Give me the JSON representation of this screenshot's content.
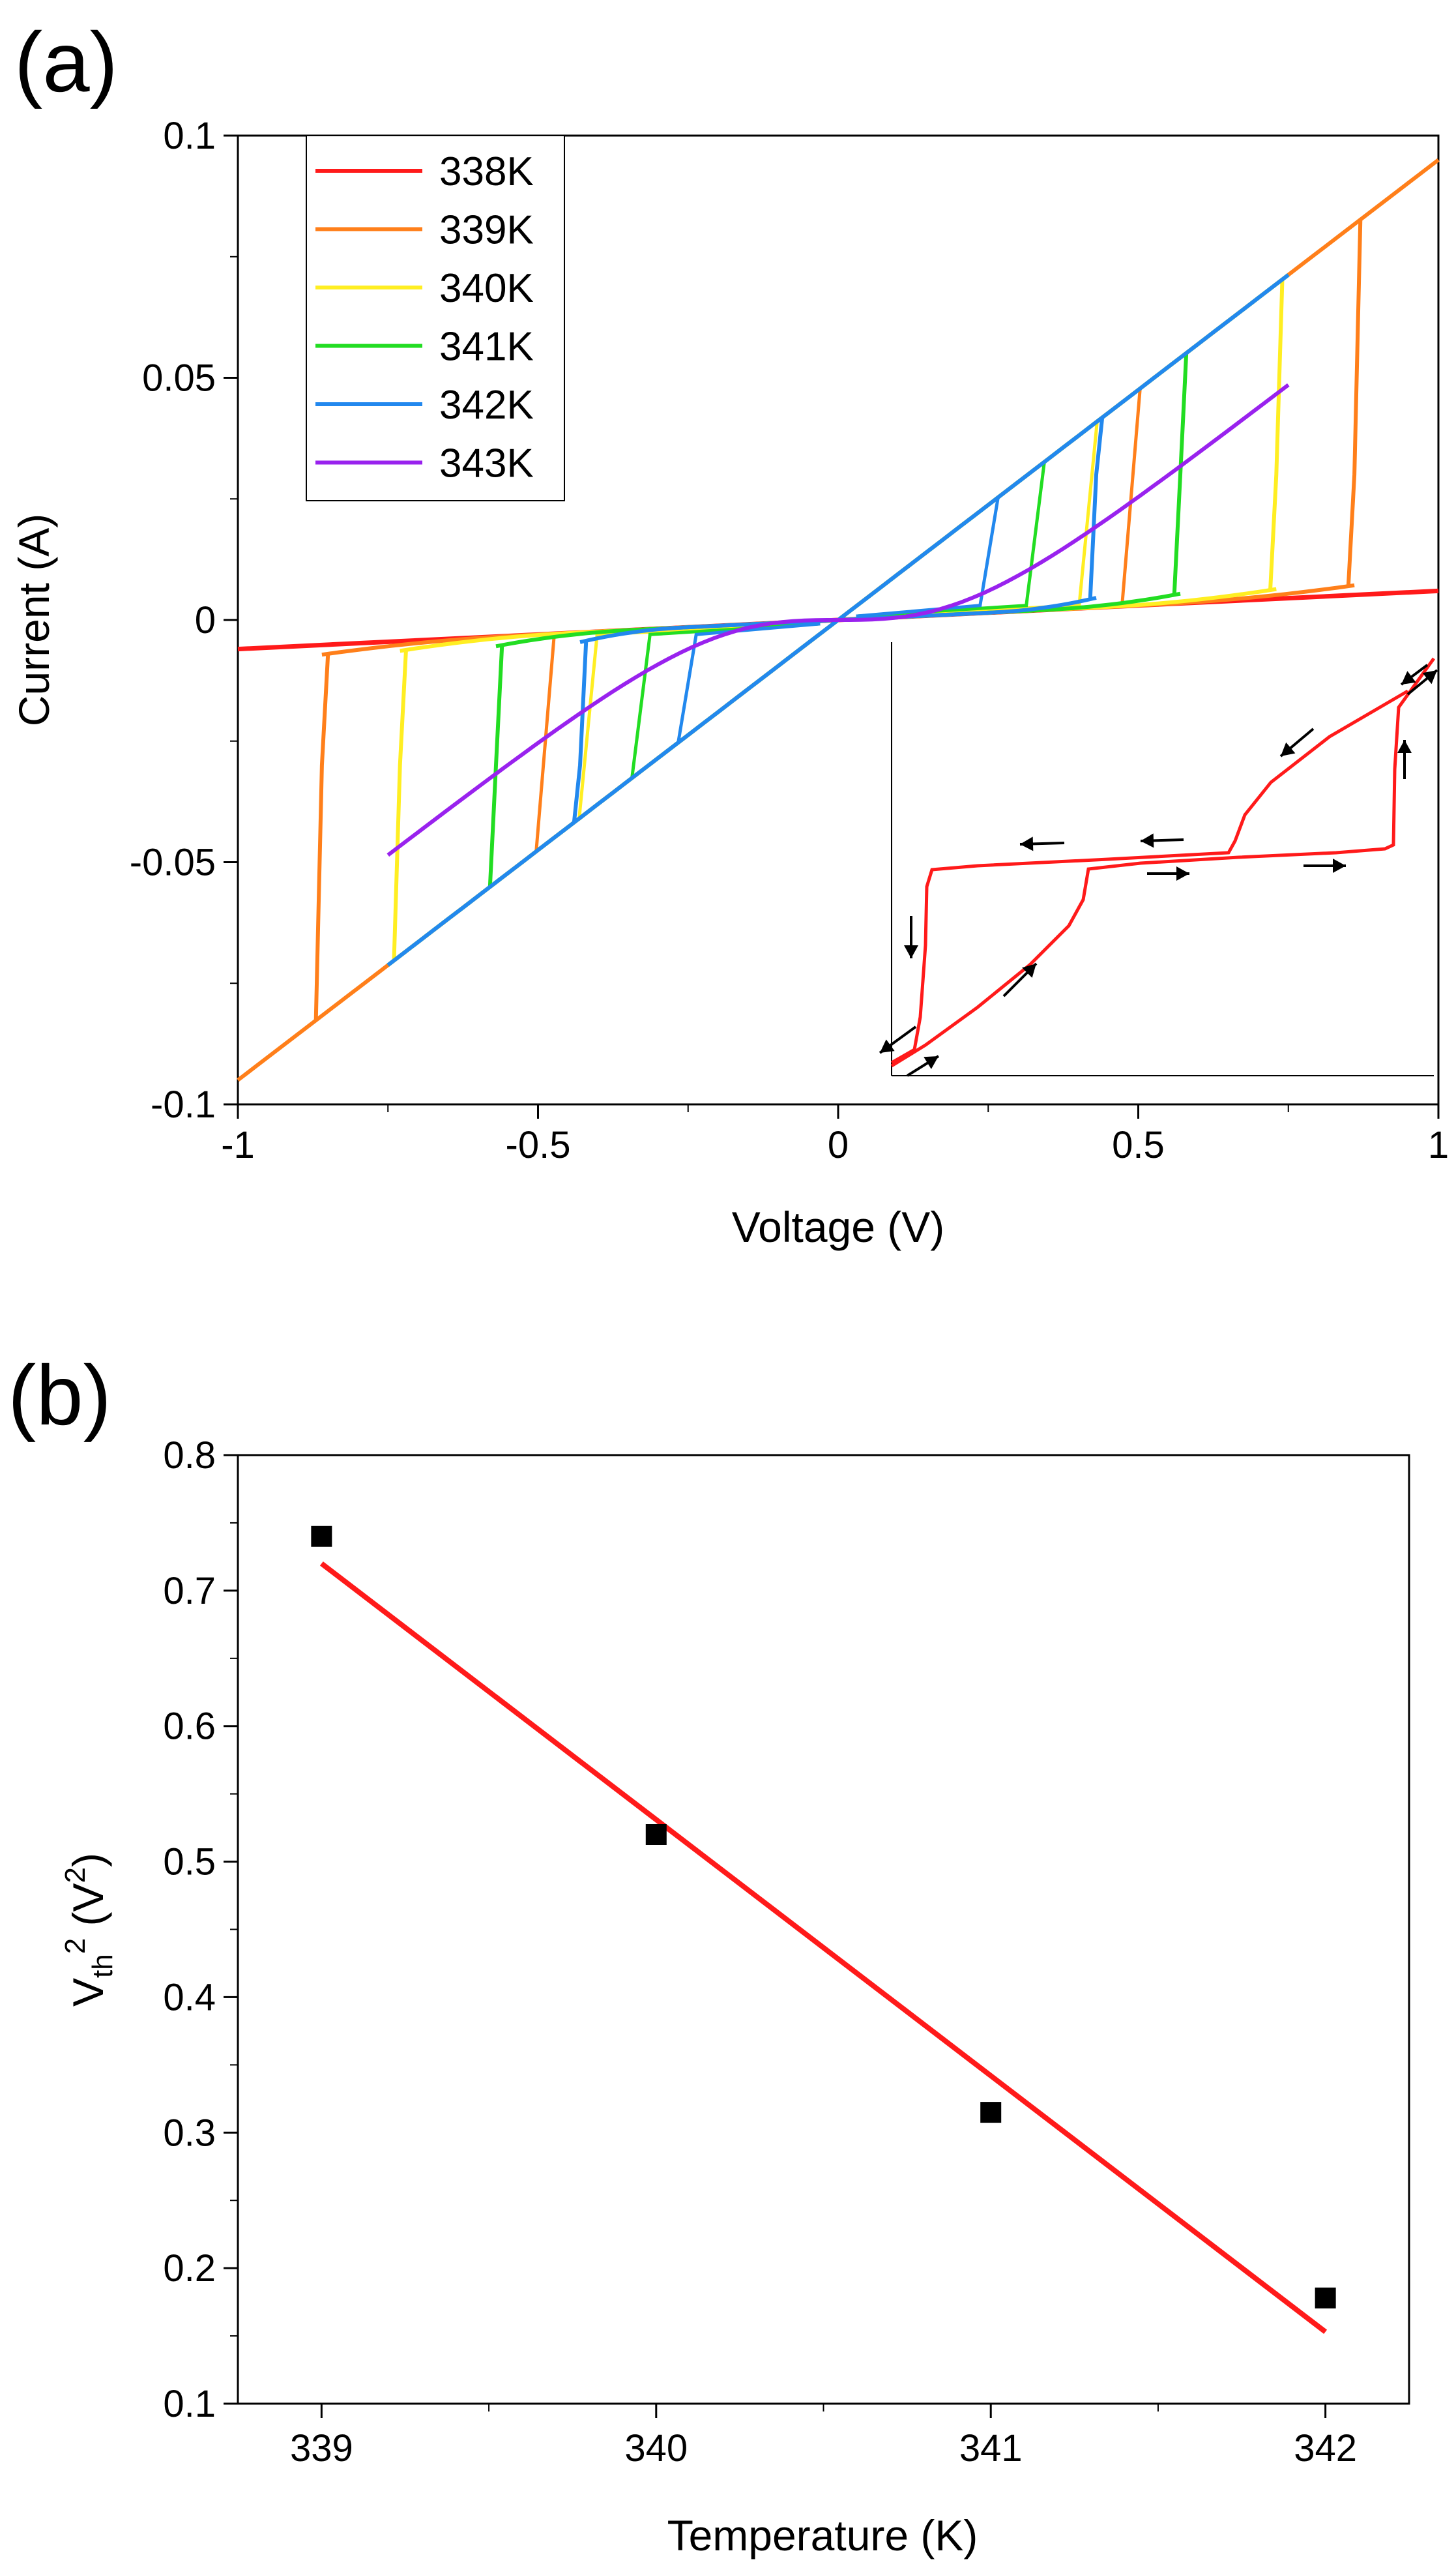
{
  "chart_data": [
    {
      "panel_label": "(a)",
      "type": "line",
      "xlabel": "Voltage (V)",
      "ylabel": "Current (A)",
      "xlim": [
        -1,
        1
      ],
      "ylim": [
        -0.1,
        0.1
      ],
      "xticks": [
        -1,
        -0.5,
        0,
        0.5,
        1
      ],
      "xtick_labels": [
        "-1",
        "-0.5",
        "0",
        "0.5",
        "1"
      ],
      "yticks": [
        -0.1,
        -0.05,
        0,
        0.05,
        0.1
      ],
      "ytick_labels": [
        "-0.1",
        "-0.05",
        "0",
        "0.05",
        "0.1"
      ],
      "legend_position": "top-left",
      "series": [
        {
          "name": "338K",
          "color": "#ff1a1a",
          "vth": null,
          "vmax": 1.0
        },
        {
          "name": "339K",
          "color": "#ff7f1a",
          "vth": 0.86,
          "vmax": 1.0
        },
        {
          "name": "340K",
          "color": "#ffee22",
          "vth": 0.73,
          "vmax": 0.75
        },
        {
          "name": "341K",
          "color": "#22dd22",
          "vth": 0.57,
          "vmax": 0.75
        },
        {
          "name": "342K",
          "color": "#2288ee",
          "vth": 0.43,
          "vmax": 0.75
        },
        {
          "name": "343K",
          "color": "#9922ee",
          "vth": null,
          "vmax": 0.75
        }
      ],
      "inset": {
        "description": "hysteresis loop with direction arrows",
        "color": "#ff1a1a"
      }
    },
    {
      "panel_label": "(b)",
      "type": "scatter",
      "xlabel": "Temperature (K)",
      "ylabel_main": "V",
      "ylabel_sub": "th",
      "ylabel_sup": "2",
      "ylabel_unit_open": " (V",
      "ylabel_unit_sup": "2",
      "ylabel_unit_close": ")",
      "xlim": [
        338.75,
        342.25
      ],
      "ylim": [
        0.1,
        0.8
      ],
      "xticks": [
        339,
        340,
        341,
        342
      ],
      "xtick_labels": [
        "339",
        "340",
        "341",
        "342"
      ],
      "yticks": [
        0.1,
        0.2,
        0.3,
        0.4,
        0.5,
        0.6,
        0.7,
        0.8
      ],
      "ytick_labels": [
        "0.1",
        "0.2",
        "0.3",
        "0.4",
        "0.5",
        "0.6",
        "0.7",
        "0.8"
      ],
      "points": {
        "x": [
          339,
          340,
          341,
          342
        ],
        "y": [
          0.74,
          0.52,
          0.315,
          0.178
        ]
      },
      "fit_line": {
        "x": [
          339,
          342
        ],
        "y": [
          0.72,
          0.153
        ],
        "color": "#ff1a1a"
      }
    }
  ]
}
